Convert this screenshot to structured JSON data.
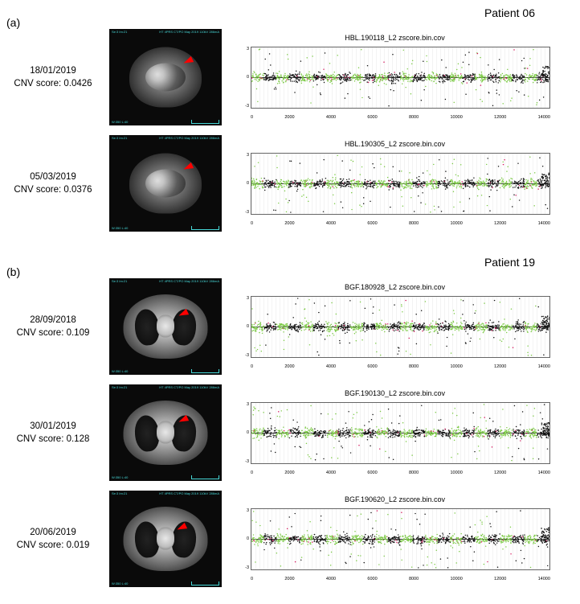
{
  "panels": {
    "a": {
      "label": "(a)",
      "patient": "Patient 06"
    },
    "b": {
      "label": "(b)",
      "patient": "Patient 19"
    }
  },
  "rows_a": [
    {
      "date": "18/01/2019",
      "cnv": "CNV score: 0.0426",
      "chart_title": "HBL.190118_L2 zscore.bin.cov"
    },
    {
      "date": "05/03/2019",
      "cnv": "CNV score: 0.0376",
      "chart_title": "HBL.190305_L2 zscore.bin.cov"
    }
  ],
  "rows_b": [
    {
      "date": "28/09/2018",
      "cnv": "CNV score: 0.109",
      "chart_title": "BGF.180928_L2 zscore.bin.cov"
    },
    {
      "date": "30/01/2019",
      "cnv": "CNV score: 0.128",
      "chart_title": "BGF.190130_L2 zscore.bin.cov"
    },
    {
      "date": "20/06/2019",
      "cnv": "CNV score: 0.019",
      "chart_title": "BGF.190620_L2 zscore.bin.cov"
    }
  ],
  "chart": {
    "type": "scatter",
    "x_ticks": [
      "0",
      "2000",
      "4000",
      "6000",
      "8000",
      "10000",
      "12000",
      "14000"
    ],
    "y_ticks": [
      "3",
      "0",
      "-3"
    ],
    "ylim": [
      -3,
      3
    ],
    "xlim": [
      0,
      14500
    ],
    "midline_color": "#000000",
    "grid_color": "#e0e0e0",
    "segments": 24,
    "point_colors_alternating": [
      "#7ac943",
      "#111111"
    ],
    "outlier_color": "#d4145a",
    "background_color": "#ffffff"
  },
  "ct_meta": {
    "overlay_color": "#46d6d6",
    "arrow_color": "#ff0000",
    "tl": "Se:3\nIm:21",
    "tr": "HT 4PRS CT/PO\nMay 2019\n110kV 286mA",
    "bl": "W:350 L:40"
  }
}
